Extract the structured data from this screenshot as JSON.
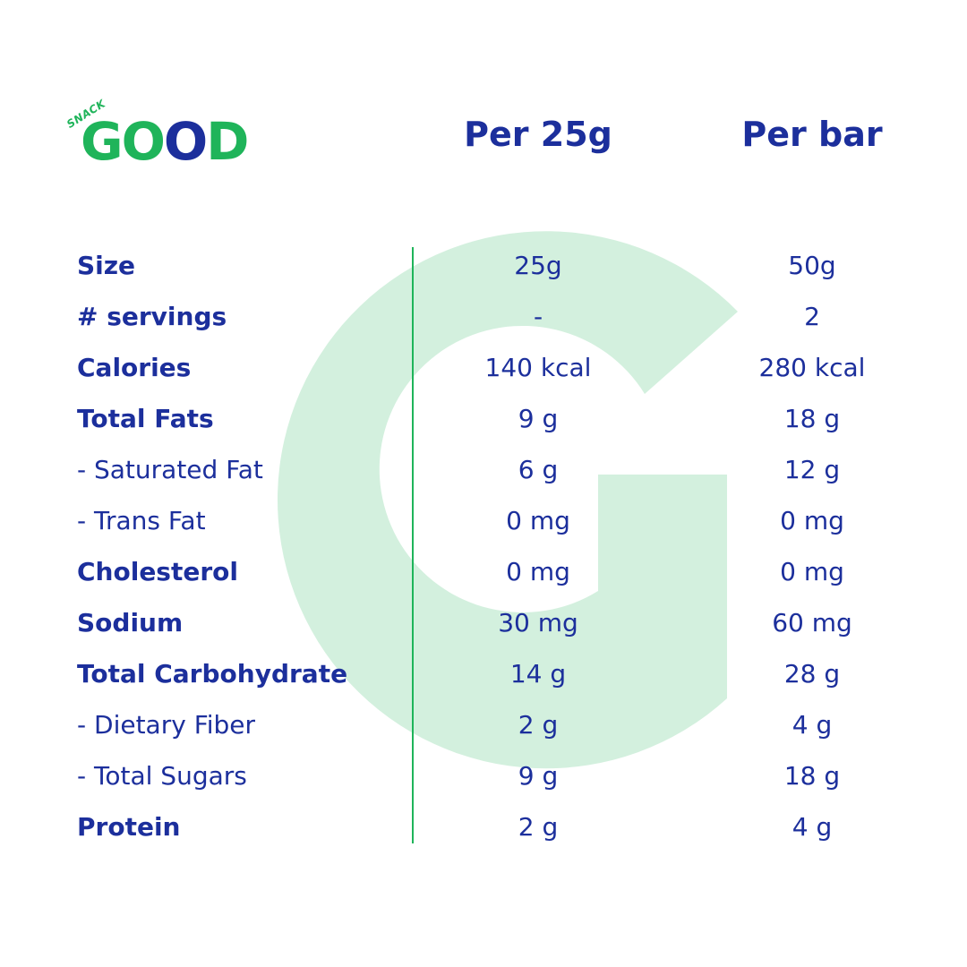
{
  "logo": {
    "snack": "SNACK",
    "word": [
      "G",
      "O",
      "O",
      "D"
    ]
  },
  "headers": {
    "per_25g": "Per 25g",
    "per_bar": "Per bar"
  },
  "colors": {
    "brand_blue": "#1c2f9c",
    "brand_green": "#1fb45a",
    "watermark_green": "#d3f0de"
  },
  "rows": [
    {
      "label": "Size",
      "per_25g": "25g",
      "per_bar": "50g",
      "style": "bold"
    },
    {
      "label": "# servings",
      "per_25g": "-",
      "per_bar": "2",
      "style": "bold"
    },
    {
      "label": "Calories",
      "per_25g": "140 kcal",
      "per_bar": "280 kcal",
      "style": "bold"
    },
    {
      "label": "Total Fats",
      "per_25g": "9 g",
      "per_bar": "18 g",
      "style": "bold"
    },
    {
      "label": "- Saturated Fat",
      "per_25g": "6 g",
      "per_bar": "12 g",
      "style": "sub"
    },
    {
      "label": "- Trans Fat",
      "per_25g": "0 mg",
      "per_bar": "0 mg",
      "style": "sub"
    },
    {
      "label": "Cholesterol",
      "per_25g": "0 mg",
      "per_bar": "0 mg",
      "style": "bold"
    },
    {
      "label": "Sodium",
      "per_25g": "30 mg",
      "per_bar": "60 mg",
      "style": "bold"
    },
    {
      "label": "Total Carbohydrate",
      "per_25g": "14 g",
      "per_bar": "28 g",
      "style": "bold"
    },
    {
      "label": "- Dietary Fiber",
      "per_25g": "2 g",
      "per_bar": "4 g",
      "style": "sub"
    },
    {
      "label": "- Total Sugars",
      "per_25g": "9 g",
      "per_bar": "18 g",
      "style": "sub"
    },
    {
      "label": "Protein",
      "per_25g": "2 g",
      "per_bar": "4 g",
      "style": "bold"
    }
  ]
}
